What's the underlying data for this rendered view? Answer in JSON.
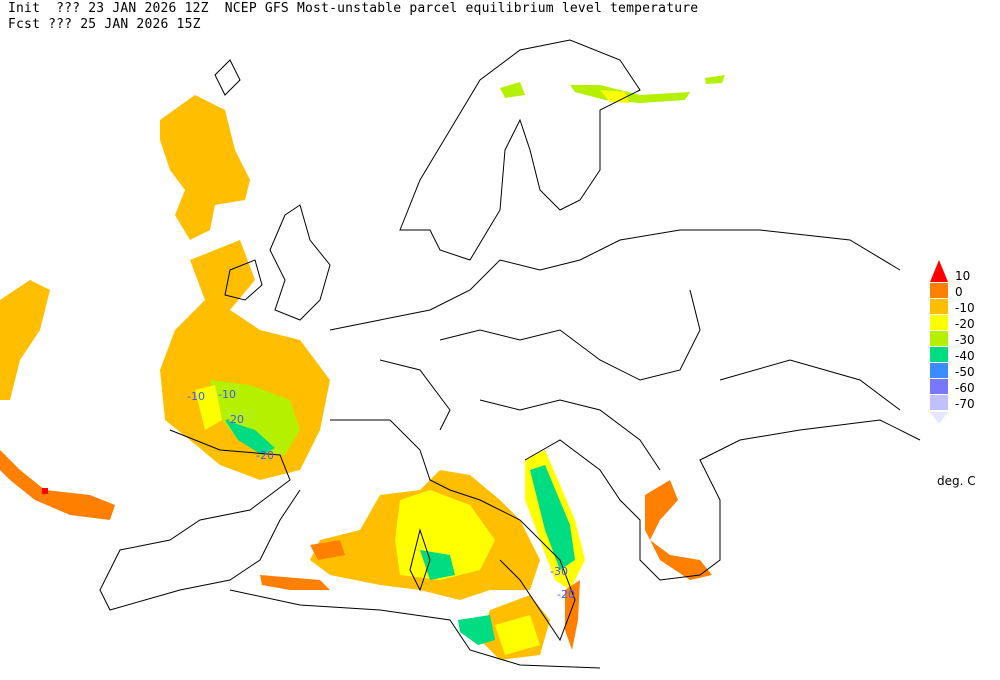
{
  "header": {
    "init_line": "Init  ??? 23 JAN 2026 12Z",
    "title": "NCEP GFS Most-unstable parcel equilibrium level temperature",
    "fcst_line": "Fcst ??? 25 JAN 2026 15Z"
  },
  "legend": {
    "units": "deg. C",
    "labels": [
      "10",
      "0",
      "-10",
      "-20",
      "-30",
      "-40",
      "-50",
      "-60",
      "-70"
    ],
    "colors": {
      "above_10": "#ff0000",
      "0_to_10": "#ff7f00",
      "-10_to_0": "#ffbf00",
      "-20_to_-10": "#ffff00",
      "-30_to_-20": "#b4f000",
      "-40_to_-30": "#00dc82",
      "-50_to_-40": "#3c8cff",
      "-60_to_-50": "#7878ff",
      "-70_to_-60": "#c0c0ff",
      "below_-70": "#e6e6ff"
    }
  },
  "contour_labels": [
    "-10",
    "-10",
    "-20",
    "-20",
    "-30",
    "-20"
  ],
  "map": {
    "region": "Europe",
    "borders_color": "#000000",
    "contour_color": "#3c5aff"
  }
}
